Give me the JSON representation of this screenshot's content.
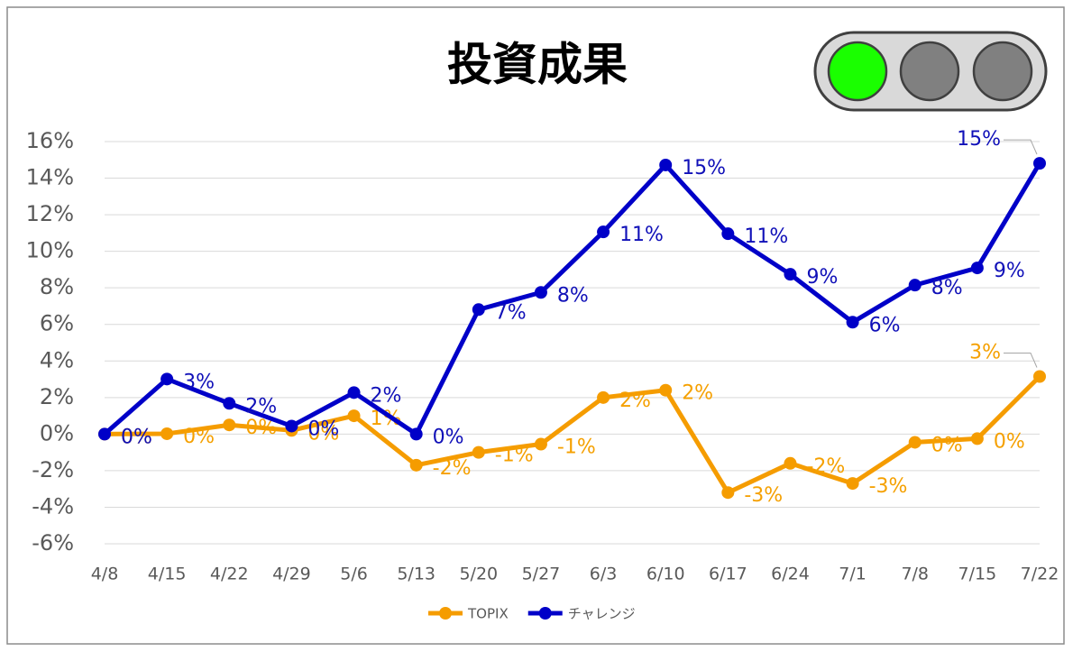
{
  "chart_data": {
    "type": "line",
    "title": "投資成果",
    "categories": [
      "4/8",
      "4/15",
      "4/22",
      "4/29",
      "5/6",
      "5/13",
      "5/20",
      "5/27",
      "6/3",
      "6/10",
      "6/17",
      "6/24",
      "7/1",
      "7/8",
      "7/15",
      "7/22"
    ],
    "series": [
      {
        "name": "TOPIX",
        "color": "#f59c00",
        "label_color": "#f5a000",
        "values": [
          0,
          0.02,
          0.5,
          0.2,
          1.0,
          -1.7,
          -1.0,
          -0.55,
          2.0,
          2.4,
          -3.2,
          -1.6,
          -2.7,
          -0.45,
          -0.25,
          3.15
        ],
        "value_labels": [
          "0%",
          "0%",
          "0%",
          "0%",
          "1%",
          "-2%",
          "-1%",
          "-1%",
          "2%",
          "2%",
          "-3%",
          "-2%",
          "-3%",
          "0%",
          "0%",
          "3%"
        ]
      },
      {
        "name": "チャレンジ",
        "color": "#0000c8",
        "label_color": "#1010b8",
        "values": [
          0,
          3.01,
          1.68,
          0.44,
          2.27,
          0,
          6.81,
          7.75,
          11.06,
          14.72,
          10.96,
          8.74,
          6.12,
          8.15,
          9.09,
          14.81
        ],
        "value_labels": [
          "0%",
          "3%",
          "2%",
          "0%",
          "2%",
          "0%",
          "7%",
          "8%",
          "11%",
          "15%",
          "11%",
          "9%",
          "6%",
          "8%",
          "9%",
          "15%"
        ]
      }
    ],
    "ylim": [
      -6,
      16
    ],
    "yticks": [
      {
        "value": -6,
        "label": "-6%"
      },
      {
        "value": -4,
        "label": "-4%"
      },
      {
        "value": -2,
        "label": "-2%"
      },
      {
        "value": 0,
        "label": "0%"
      },
      {
        "value": 2,
        "label": "2%"
      },
      {
        "value": 4,
        "label": "4%"
      },
      {
        "value": 6,
        "label": "6%"
      },
      {
        "value": 8,
        "label": "8%"
      },
      {
        "value": 10,
        "label": "10%"
      },
      {
        "value": 12,
        "label": "12%"
      },
      {
        "value": 14,
        "label": "14%"
      },
      {
        "value": 16,
        "label": "16%"
      }
    ],
    "grid": true,
    "legend": "bottom"
  }
}
